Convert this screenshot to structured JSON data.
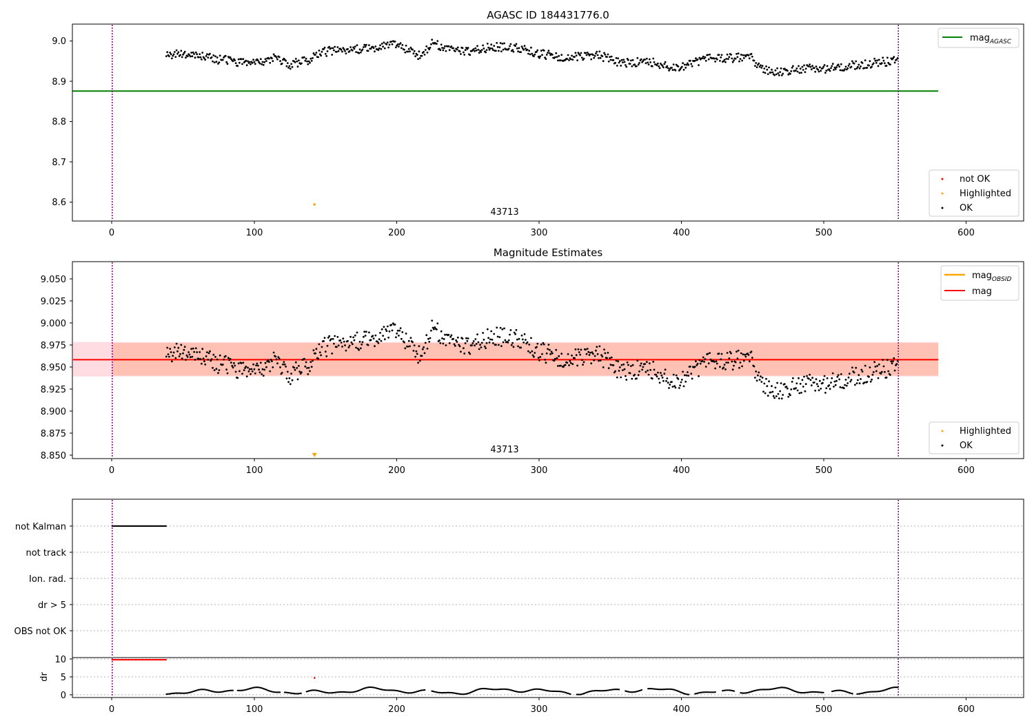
{
  "panels": {
    "top": {
      "title": "AGASC ID 184431776.0",
      "annotation": "43713",
      "x_ticks": [
        "0",
        "100",
        "200",
        "300",
        "400",
        "500",
        "600"
      ],
      "y_ticks": [
        "8.6",
        "8.7",
        "8.8",
        "8.9",
        "9.0"
      ],
      "legend_upper": [
        {
          "label": "mag",
          "subscript": "AGASC"
        }
      ],
      "legend_lower": [
        "not OK",
        "Highlighted",
        "OK"
      ]
    },
    "middle": {
      "title": "Magnitude Estimates",
      "annotation": "43713",
      "x_ticks": [
        "0",
        "100",
        "200",
        "300",
        "400",
        "500",
        "600"
      ],
      "y_ticks": [
        "8.850",
        "8.875",
        "8.900",
        "8.925",
        "8.950",
        "8.975",
        "9.000",
        "9.025",
        "9.050"
      ],
      "legend_upper": [
        {
          "label": "mag",
          "subscript": "OBSID"
        },
        {
          "label": "mag",
          "subscript": ""
        }
      ],
      "legend_lower": [
        "Highlighted",
        "OK"
      ]
    },
    "flags": {
      "categories": [
        "not Kalman",
        "not track",
        "Ion. rad.",
        "dr > 5",
        "OBS not OK"
      ]
    },
    "dr": {
      "ylabel": "dr",
      "y_ticks": [
        "0",
        "5",
        "10"
      ],
      "x_ticks": [
        "0",
        "100",
        "200",
        "300",
        "400",
        "500",
        "600"
      ]
    }
  },
  "colors": {
    "ok": "#000000",
    "not_ok": "#ff0000",
    "highlighted": "#ffa500",
    "mag_agasc": "#008000",
    "mag_obsid": "#ffa500",
    "mag": "#ff0000",
    "band_mag": "#ffc0cb",
    "band_obsid": "#ffa07a",
    "obs_boundary": "#800080",
    "grid": "#b0b0b0"
  },
  "chart_data": [
    {
      "type": "scatter",
      "panel": "top",
      "title": "AGASC ID 184431776.0",
      "xlim": [
        -28,
        640
      ],
      "ylim": [
        8.552,
        9.04
      ],
      "series": [
        {
          "name": "mag_AGASC",
          "kind": "hline",
          "y": 8.874,
          "x_range": [
            -28,
            580
          ]
        },
        {
          "name": "OK",
          "kind": "points",
          "generated": "mag",
          "x_range": [
            38,
            552
          ]
        },
        {
          "name": "Highlighted",
          "kind": "points",
          "x": [
            142
          ],
          "y": [
            8.593
          ]
        }
      ],
      "obs_boundaries": [
        0,
        552
      ],
      "annotation": {
        "text": "43713",
        "x": 276
      }
    },
    {
      "type": "scatter",
      "panel": "middle",
      "title": "Magnitude Estimates",
      "xlim": [
        -28,
        640
      ],
      "ylim": [
        8.845,
        9.068
      ],
      "series": [
        {
          "name": "mag",
          "kind": "hline",
          "y": 8.957,
          "band": [
            8.938,
            8.977
          ],
          "x_range": [
            -28,
            580
          ]
        },
        {
          "name": "mag_OBSID",
          "kind": "hline",
          "y": 8.957,
          "band": [
            8.939,
            8.976
          ],
          "x_range": [
            0,
            580
          ]
        },
        {
          "name": "OK",
          "kind": "points",
          "generated": "mag",
          "x_range": [
            38,
            552
          ]
        },
        {
          "name": "Highlighted",
          "kind": "marker",
          "x": [
            142
          ],
          "y": [
            8.849
          ]
        }
      ],
      "obs_boundaries": [
        0,
        552
      ],
      "annotation": {
        "text": "43713",
        "x": 276
      }
    },
    {
      "type": "scatter",
      "panel": "flags",
      "categories": [
        "not Kalman",
        "not track",
        "Ion. rad.",
        "dr > 5",
        "OBS not OK"
      ],
      "xlim": [
        -28,
        640
      ],
      "series": [
        {
          "name": "not Kalman",
          "kind": "points",
          "x_range": [
            0,
            38
          ]
        }
      ],
      "obs_boundaries": [
        0,
        552
      ]
    },
    {
      "type": "scatter",
      "panel": "dr",
      "ylabel": "dr",
      "xlim": [
        -28,
        640
      ],
      "ylim": [
        -0.8,
        10.4
      ],
      "series": [
        {
          "name": "dr not OK",
          "kind": "points",
          "x_range": [
            0,
            38
          ],
          "y": 9.8
        },
        {
          "name": "dr highlighted",
          "kind": "points",
          "x": [
            142
          ],
          "y": [
            4.7
          ]
        },
        {
          "name": "dr OK",
          "kind": "points",
          "generated": "dr",
          "x_range": [
            38,
            552
          ]
        }
      ],
      "obs_boundaries": [
        0,
        552
      ]
    }
  ]
}
